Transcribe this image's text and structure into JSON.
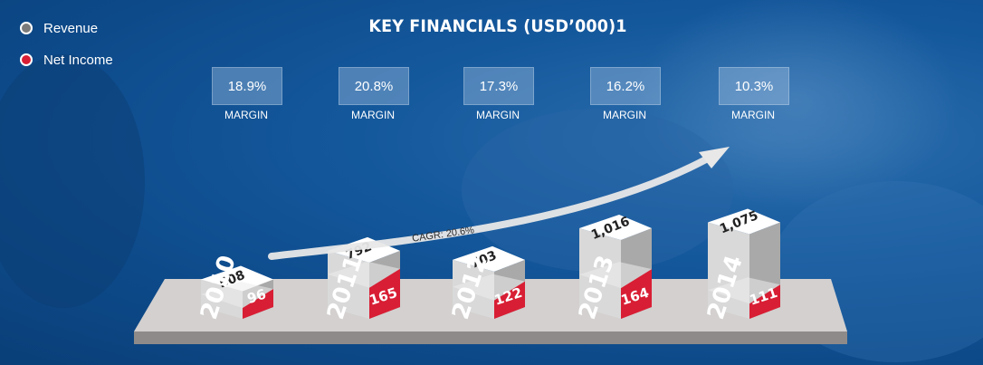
{
  "title": "KEY FINANCIALS (USD’000)1",
  "legend": [
    {
      "label": "Revenue",
      "color": "#7b7b7b"
    },
    {
      "label": "Net Income",
      "color": "#d81e34"
    }
  ],
  "margin_label": "MARGIN",
  "cagr_label": "CAGR: 20.6%",
  "chart_data": {
    "type": "bar",
    "title": "KEY FINANCIALS (USD’000)1",
    "categories": [
      "2010",
      "2011",
      "2012",
      "2013",
      "2014"
    ],
    "series": [
      {
        "name": "Revenue",
        "values": [
          508,
          792,
          703,
          1016,
          1075
        ],
        "labels": [
          "508",
          "792",
          "703",
          "1,016",
          "1,075"
        ]
      },
      {
        "name": "Net Income",
        "values": [
          96,
          165,
          122,
          164,
          111
        ],
        "labels": [
          "96",
          "165",
          "122",
          "164",
          "111"
        ]
      }
    ],
    "margins": [
      "18.9%",
      "20.8%",
      "17.3%",
      "16.2%",
      "10.3%"
    ],
    "cagr": "CAGR: 20.6%",
    "colors": {
      "revenue": "#d8d8d8",
      "net_income": "#d81e34",
      "background": "#1457a0"
    }
  }
}
